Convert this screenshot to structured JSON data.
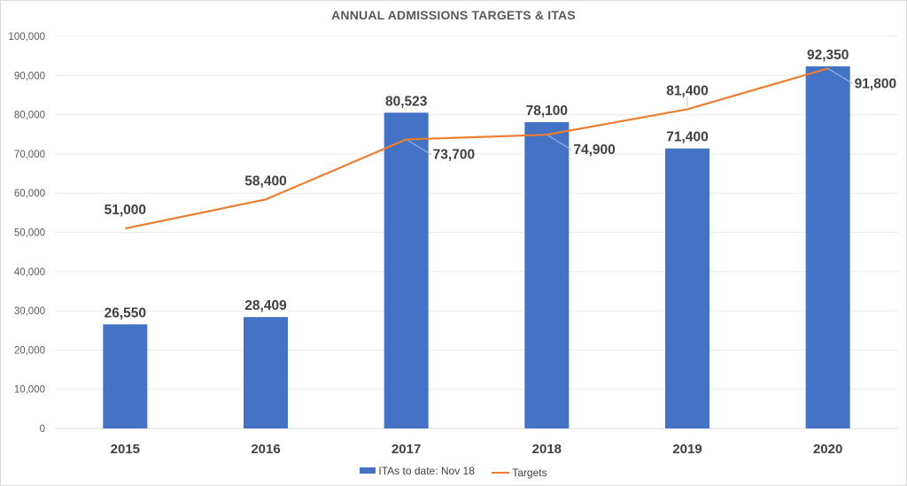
{
  "chart_data": {
    "type": "bar",
    "title": "ANNUAL ADMISSIONS TARGETS & ITAS",
    "xlabel": "",
    "ylabel": "",
    "categories": [
      "2015",
      "2016",
      "2017",
      "2018",
      "2019",
      "2020"
    ],
    "ylim": [
      0,
      100000
    ],
    "yticks": [
      0,
      10000,
      20000,
      30000,
      40000,
      50000,
      60000,
      70000,
      80000,
      90000,
      100000
    ],
    "ytick_labels": [
      "0",
      "10,000",
      "20,000",
      "30,000",
      "40,000",
      "50,000",
      "60,000",
      "70,000",
      "80,000",
      "90,000",
      "100,000"
    ],
    "grid": true,
    "legend_position": "bottom",
    "series": [
      {
        "name": "ITAs to date: Nov 18",
        "type": "bar",
        "color": "#4472c4",
        "values": [
          26550,
          28409,
          80523,
          78100,
          71400,
          92350
        ],
        "labels": [
          "26,550",
          "28,409",
          "80,523",
          "78,100",
          "71,400",
          "92,350"
        ]
      },
      {
        "name": "Targets",
        "type": "line",
        "color": "#ed7d31",
        "values": [
          51000,
          58400,
          73700,
          74900,
          81400,
          91800
        ],
        "labels": [
          "51,000",
          "58,400",
          "73,700",
          "74,900",
          "81,400",
          "91,800"
        ]
      }
    ]
  }
}
